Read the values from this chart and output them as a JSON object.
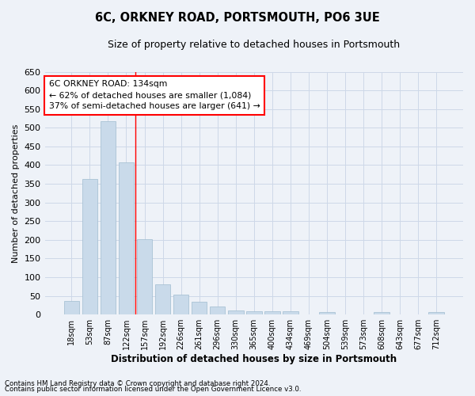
{
  "title": "6C, ORKNEY ROAD, PORTSMOUTH, PO6 3UE",
  "subtitle": "Size of property relative to detached houses in Portsmouth",
  "xlabel": "Distribution of detached houses by size in Portsmouth",
  "ylabel": "Number of detached properties",
  "bar_color": "#c9daea",
  "bar_edge_color": "#a0bcd0",
  "bar_values": [
    37,
    362,
    517,
    408,
    201,
    82,
    54,
    34,
    21,
    12,
    9,
    9,
    9,
    1,
    6,
    1,
    0,
    6,
    0,
    0,
    6
  ],
  "all_categories": [
    "18sqm",
    "53sqm",
    "87sqm",
    "122sqm",
    "157sqm",
    "192sqm",
    "226sqm",
    "261sqm",
    "296sqm",
    "330sqm",
    "365sqm",
    "400sqm",
    "434sqm",
    "469sqm",
    "504sqm",
    "539sqm",
    "573sqm",
    "608sqm",
    "643sqm",
    "677sqm",
    "712sqm"
  ],
  "ylim": [
    0,
    650
  ],
  "yticks": [
    0,
    50,
    100,
    150,
    200,
    250,
    300,
    350,
    400,
    450,
    500,
    550,
    600,
    650
  ],
  "grid_color": "#cdd8e8",
  "vline_x": 3.5,
  "vline_color": "red",
  "annotation_text": "6C ORKNEY ROAD: 134sqm\n← 62% of detached houses are smaller (1,084)\n37% of semi-detached houses are larger (641) →",
  "annotation_box_color": "white",
  "annotation_box_edge": "red",
  "footer1": "Contains HM Land Registry data © Crown copyright and database right 2024.",
  "footer2": "Contains public sector information licensed under the Open Government Licence v3.0.",
  "bg_color": "#eef2f8"
}
